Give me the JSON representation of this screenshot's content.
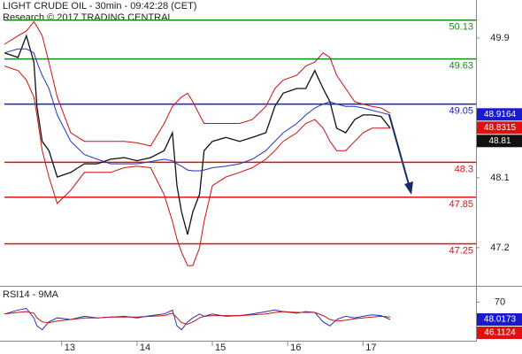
{
  "chart_data": {
    "type": "line",
    "title": "LIGHT CRUDE OIL - 30min - 09:42:28 (CET)",
    "subtitle": "Research © 2017 TRADING CENTRAL",
    "x": [
      12.24,
      12.42,
      12.53,
      12.63,
      12.67,
      12.74,
      12.83,
      12.94,
      13.12,
      13.3,
      13.47,
      13.65,
      13.83,
      14.0,
      14.18,
      14.36,
      14.47,
      14.53,
      14.59,
      14.67,
      14.74,
      14.83,
      14.89,
      15.0,
      15.18,
      15.36,
      15.53,
      15.71,
      15.83,
      15.94,
      16.12,
      16.24,
      16.36,
      16.47,
      16.56,
      16.65,
      16.77,
      16.89,
      17.0,
      17.12,
      17.24,
      17.36
    ],
    "xlim": [
      12.18,
      18.5
    ],
    "xticks": [
      13,
      14,
      15,
      16,
      17
    ],
    "ylim": [
      46.72,
      50.39
    ],
    "yticks": [
      47.2,
      48.1,
      49.9
    ],
    "series": [
      {
        "name": "price",
        "color": "#111111",
        "values": [
          49.71,
          49.65,
          49.93,
          49.59,
          49.02,
          48.57,
          48.45,
          48.11,
          48.17,
          48.28,
          48.28,
          48.34,
          48.36,
          48.32,
          48.36,
          48.45,
          48.68,
          48.0,
          47.66,
          47.37,
          47.66,
          47.89,
          48.45,
          48.57,
          48.62,
          48.57,
          48.62,
          48.68,
          49.02,
          49.19,
          49.25,
          49.25,
          49.48,
          49.25,
          49.08,
          48.74,
          48.68,
          48.85,
          48.91,
          48.91,
          48.89,
          48.74
        ]
      },
      {
        "name": "average",
        "color": "#2233bb",
        "values": [
          49.71,
          49.76,
          49.76,
          49.71,
          49.59,
          49.42,
          49.25,
          48.91,
          48.57,
          48.4,
          48.34,
          48.28,
          48.28,
          48.28,
          48.31,
          48.34,
          48.32,
          48.28,
          48.25,
          48.2,
          48.19,
          48.19,
          48.2,
          48.23,
          48.25,
          48.28,
          48.34,
          48.45,
          48.57,
          48.68,
          48.8,
          48.91,
          49.0,
          49.05,
          49.08,
          49.05,
          49.02,
          49.02,
          49.0,
          48.97,
          48.94,
          48.91
        ]
      },
      {
        "name": "upper",
        "color": "#cc1111",
        "values": [
          49.82,
          49.93,
          49.99,
          50.11,
          50.05,
          49.93,
          49.59,
          49.14,
          48.68,
          48.57,
          48.57,
          48.57,
          48.57,
          48.55,
          48.51,
          48.8,
          49.02,
          49.08,
          49.14,
          49.19,
          49.08,
          48.91,
          48.8,
          48.8,
          48.8,
          48.8,
          48.85,
          49.02,
          49.25,
          49.36,
          49.42,
          49.54,
          49.59,
          49.71,
          49.65,
          49.42,
          49.25,
          49.08,
          49.05,
          49.02,
          49.0,
          48.93
        ]
      },
      {
        "name": "lower",
        "color": "#cc1111",
        "values": [
          49.54,
          49.48,
          49.36,
          49.14,
          48.91,
          48.45,
          48.11,
          47.77,
          47.94,
          48.17,
          48.17,
          48.17,
          48.23,
          48.25,
          48.23,
          47.88,
          47.54,
          47.31,
          47.14,
          46.97,
          46.97,
          47.2,
          47.54,
          48.0,
          48.11,
          48.17,
          48.23,
          48.34,
          48.45,
          48.57,
          48.68,
          48.8,
          48.85,
          48.74,
          48.57,
          48.45,
          48.45,
          48.57,
          48.68,
          48.74,
          48.74,
          48.74
        ]
      }
    ],
    "levels": [
      {
        "value": 50.13,
        "color": "#1a8a1a"
      },
      {
        "value": 49.63,
        "color": "#1a8a1a"
      },
      {
        "value": 49.05,
        "color": "#1a1acc"
      },
      {
        "value": 48.3,
        "color": "#e01010"
      },
      {
        "value": 47.85,
        "color": "#e01010"
      },
      {
        "value": 47.25,
        "color": "#e01010"
      }
    ],
    "badges": [
      {
        "value": 48.9164,
        "color": "#1a1acc"
      },
      {
        "value": 48.8315,
        "color": "#e01010"
      },
      {
        "value": 48.81,
        "color": "#111111"
      }
    ],
    "rsi": {
      "label": "RSI14 - 9MA",
      "ylim": [
        20,
        85
      ],
      "yticks": [
        70
      ],
      "series": [
        {
          "name": "rsi",
          "color": "#2233bb",
          "values": [
            55,
            60,
            62,
            50,
            40,
            35,
            45,
            50,
            48,
            52,
            50,
            51,
            52,
            50,
            53,
            55,
            60,
            40,
            35,
            45,
            50,
            55,
            52,
            55,
            52,
            53,
            55,
            58,
            60,
            58,
            56,
            58,
            57,
            45,
            40,
            48,
            52,
            50,
            52,
            54,
            53,
            48
          ]
        },
        {
          "name": "rsi-ma",
          "color": "#cc1111",
          "values": [
            55,
            57,
            58,
            56,
            50,
            45,
            44,
            46,
            48,
            50,
            50,
            51,
            51,
            51,
            52,
            53,
            56,
            50,
            44,
            42,
            45,
            50,
            52,
            53,
            53,
            53,
            54,
            55,
            57,
            58,
            57,
            57,
            57,
            53,
            48,
            46,
            47,
            49,
            50,
            51,
            52,
            51
          ]
        }
      ],
      "badges": [
        {
          "value": 48.0173,
          "color": "#1a1acc"
        },
        {
          "value": 46.1124,
          "color": "#e01010"
        }
      ]
    }
  }
}
